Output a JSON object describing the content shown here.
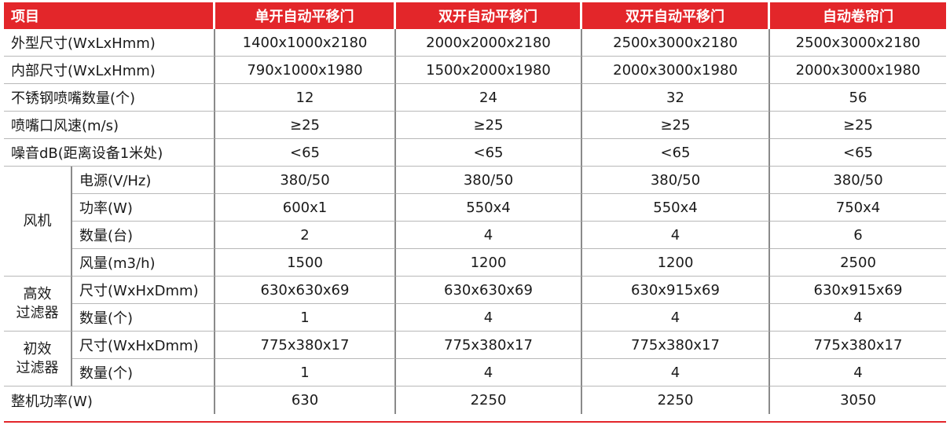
{
  "headers": [
    "项目",
    "单开自动平移门",
    "双开自动平移门",
    "双开自动平移门",
    "自动卷帘门"
  ],
  "rows": [
    {
      "label": "外型尺寸(WxLxHmm)",
      "values": [
        "1400x1000x2180",
        "2000x2000x2180",
        "2500x3000x2180",
        "2500x3000x2180"
      ]
    },
    {
      "label": "内部尺寸(WxLxHmm)",
      "values": [
        "790x1000x1980",
        "1500x2000x1980",
        "2000x3000x1980",
        "2000x3000x1980"
      ]
    },
    {
      "label": "不锈钢喷嘴数量(个)",
      "values": [
        "12",
        "24",
        "32",
        "56"
      ]
    },
    {
      "label": "喷嘴口风速(m/s)",
      "values": [
        "≥25",
        "≥25",
        "≥25",
        "≥25"
      ]
    },
    {
      "label": "噪音dB(距离设备1米处)",
      "values": [
        "<65",
        "<65",
        "<65",
        "<65"
      ]
    }
  ],
  "fan": {
    "group": "风机",
    "rows": [
      {
        "label": "电源(V/Hz)",
        "values": [
          "380/50",
          "380/50",
          "380/50",
          "380/50"
        ]
      },
      {
        "label": "功率(W)",
        "values": [
          "600x1",
          "550x4",
          "550x4",
          "750x4"
        ]
      },
      {
        "label": "数量(台)",
        "values": [
          "2",
          "4",
          "4",
          "6"
        ]
      },
      {
        "label": "风量(m3/h)",
        "values": [
          "1500",
          "1200",
          "1200",
          "2500"
        ]
      }
    ]
  },
  "hepa": {
    "group_line1": "高效",
    "group_line2": "过滤器",
    "rows": [
      {
        "label": "尺寸(WxHxDmm)",
        "values": [
          "630x630x69",
          "630x630x69",
          "630x915x69",
          "630x915x69"
        ]
      },
      {
        "label": "数量(个)",
        "values": [
          "1",
          "4",
          "4",
          "4"
        ]
      }
    ]
  },
  "prefilter": {
    "group_line1": "初效",
    "group_line2": "过滤器",
    "rows": [
      {
        "label": "尺寸(WxHxDmm)",
        "values": [
          "775x380x17",
          "775x380x17",
          "775x380x17",
          "775x380x17"
        ]
      },
      {
        "label": "数量(个)",
        "values": [
          "1",
          "4",
          "4",
          "4"
        ]
      }
    ]
  },
  "total": {
    "label": "整机功率(W)",
    "values": [
      "630",
      "2250",
      "2250",
      "3050"
    ]
  },
  "colors": {
    "header_bg": "#e3262a",
    "header_text": "#ffffff"
  }
}
